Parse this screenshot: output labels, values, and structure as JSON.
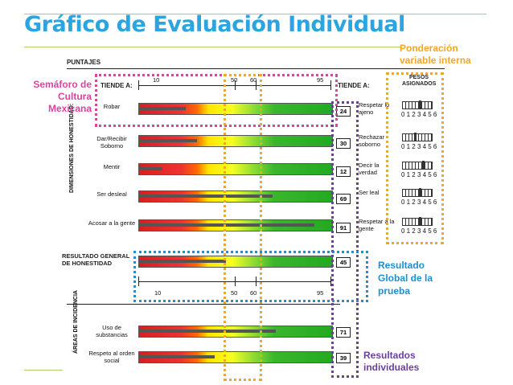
{
  "title": "Gráfico de Evaluación Individual",
  "annotations": {
    "semaforo": "Semáforo de Cultura Mexicana",
    "ponderacion": "Ponderación variable interna",
    "resultado_global": "Resultado Global de la prueba",
    "resultados_individuales": "Resultados individuales"
  },
  "chart": {
    "puntajes": "PUNTAJES",
    "tiende_a_left": "TIENDE A:",
    "tiende_a_right": "TIENDE A:",
    "pesos": "PESOS ASIGNADOS",
    "ticks": [
      "10",
      "50",
      "60",
      "95"
    ],
    "weights_digits": "0123456",
    "dimensiones_label": "DIMENSIONES DE HONESTIDAD:",
    "resultado_label": "RESULTADO GENERAL DE HONESTIDAD",
    "areas_label": "ÁREAS DE INCIDENCIA",
    "rows": [
      {
        "left": "Robar",
        "right": "Respetar lo ajeno",
        "score": "24",
        "value": 24
      },
      {
        "left": "Dar/Recibir Soborno",
        "right": "Rechazar soborno",
        "score": "30",
        "value": 30
      },
      {
        "left": "Mentir",
        "right": "Decir la verdad",
        "score": "12",
        "value": 12
      },
      {
        "left": "Ser desleal",
        "right": "Ser leal",
        "score": "69",
        "value": 69
      },
      {
        "left": "Acosar a la gente",
        "right": "Respetar a la gente",
        "score": "91",
        "value": 91
      }
    ],
    "global": {
      "score": "45",
      "value": 45
    },
    "areas": [
      {
        "left": "Uso de substancias",
        "score": "71",
        "value": 71
      },
      {
        "left": "Respeto al orden social",
        "score": "39",
        "value": 39
      }
    ]
  },
  "colors": {
    "title": "#2aa5e0",
    "orange": "#f5a623",
    "pink": "#e040a0",
    "blue": "#1f8fd0",
    "purple": "#6a3fa0"
  }
}
